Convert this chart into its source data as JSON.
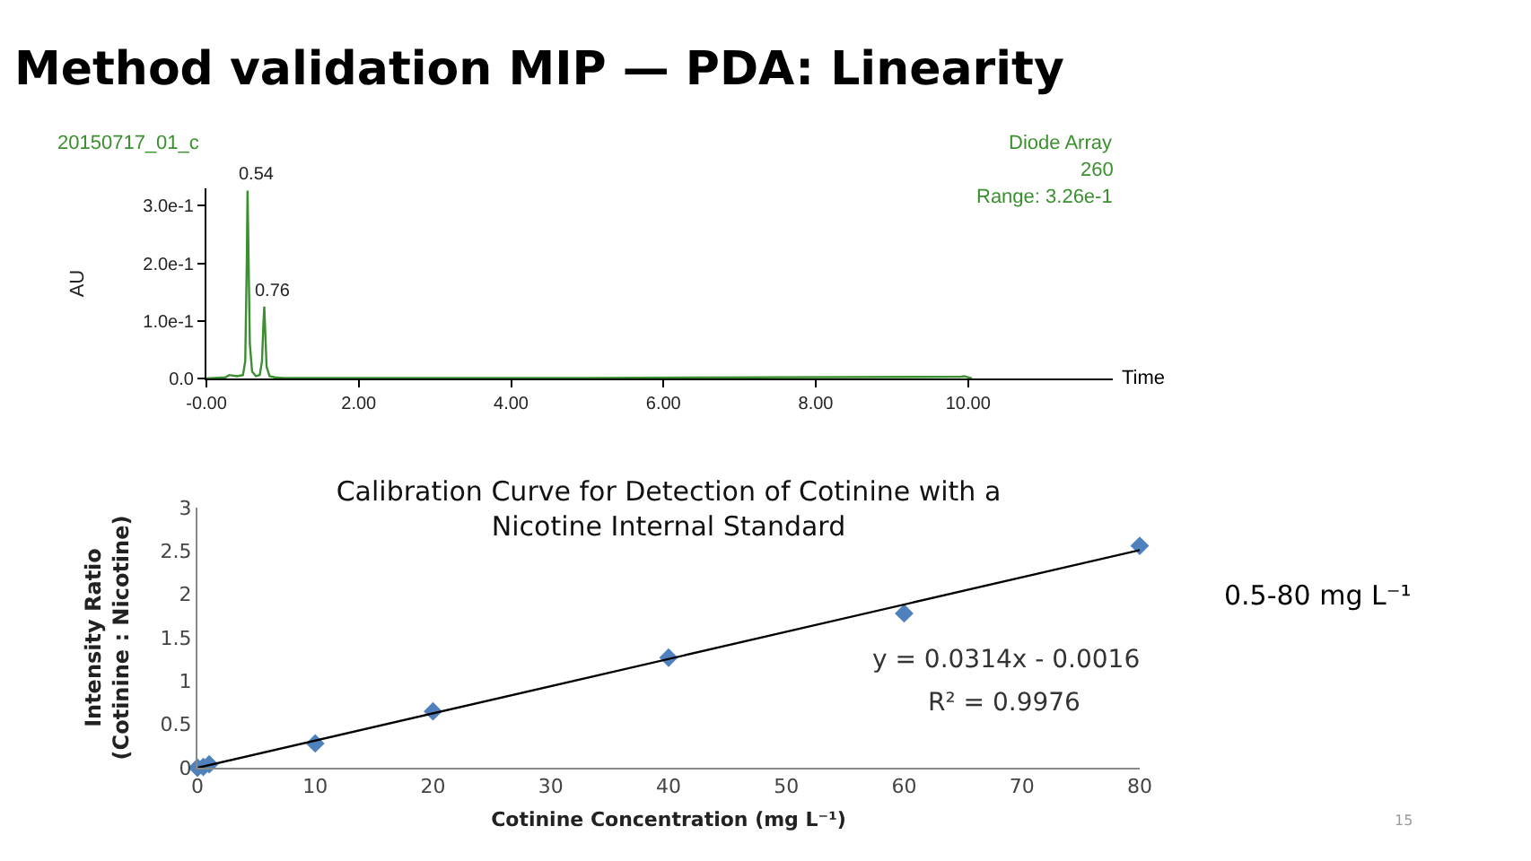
{
  "chart_data": [
    {
      "type": "line",
      "title": "Method validation MIP — PDA: Linearity",
      "xlabel": "Time",
      "ylabel": "AU",
      "annotations": [
        "20150717_01_c",
        "Diode Array",
        "260",
        "Range: 3.26e-1",
        {
          "text": "0.54",
          "x": 0.54,
          "y": 0.326
        },
        {
          "text": "0.76",
          "x": 0.76,
          "y": 0.125
        }
      ],
      "series": [
        {
          "color": "#3a8f2e",
          "x": [
            0,
            0.25,
            0.3,
            0.4,
            0.48,
            0.51,
            0.53,
            0.54,
            0.55,
            0.57,
            0.6,
            0.65,
            0.7,
            0.73,
            0.75,
            0.76,
            0.77,
            0.79,
            0.83,
            0.9,
            1.0,
            2.0,
            5.0,
            9.9,
            9.95,
            10.0,
            10.05
          ],
          "values": [
            0.0,
            0.002,
            0.006,
            0.004,
            0.006,
            0.03,
            0.2,
            0.326,
            0.24,
            0.06,
            0.012,
            0.004,
            0.006,
            0.03,
            0.1,
            0.125,
            0.09,
            0.02,
            0.004,
            0.002,
            0.001,
            0.001,
            0.001,
            0.003,
            0.004,
            0.002,
            0.0
          ]
        }
      ],
      "xlim": [
        0,
        11.9
      ],
      "ylim": [
        0,
        0.33
      ],
      "xticks": [
        {
          "value": 0,
          "label": "-0.00"
        },
        {
          "value": 2,
          "label": "2.00"
        },
        {
          "value": 4,
          "label": "4.00"
        },
        {
          "value": 6,
          "label": "6.00"
        },
        {
          "value": 8,
          "label": "8.00"
        },
        {
          "value": 10,
          "label": "10.00"
        }
      ],
      "yticks": [
        {
          "value": 0,
          "label": "0.0"
        },
        {
          "value": 0.1,
          "label": "1.0e-1"
        },
        {
          "value": 0.2,
          "label": "2.0e-1"
        },
        {
          "value": 0.3,
          "label": "3.0e-1"
        }
      ]
    },
    {
      "type": "scatter",
      "title": "Calibration Curve for Detection of Cotinine with a\nNicotine Internal Standard",
      "xlabel": "Cotinine Concentration (mg L⁻¹)",
      "ylabel": "Intensity Ratio\n(Cotinine : Nicotine)",
      "annotations": [
        "y = 0.0314x - 0.0016",
        "R² = 0.9976",
        "0.5-80 mg L⁻¹",
        "15"
      ],
      "series": [
        {
          "color": "#4f81bd",
          "marker": "diamond",
          "x": [
            0,
            0.5,
            1,
            10,
            20,
            40,
            60,
            80
          ],
          "values": [
            0,
            0.01,
            0.04,
            0.28,
            0.65,
            1.27,
            1.78,
            2.56
          ]
        },
        {
          "type": "line",
          "marker": "none",
          "color": "#000000",
          "x": [
            0.05,
            80
          ],
          "values": [
            0,
            2.51
          ]
        }
      ],
      "xlim": [
        0,
        80
      ],
      "ylim": [
        0,
        3
      ],
      "xticks": [
        0,
        10,
        20,
        30,
        40,
        50,
        60,
        70,
        80
      ],
      "yticks": [
        0,
        0.5,
        1,
        1.5,
        2,
        2.5,
        3
      ]
    }
  ]
}
